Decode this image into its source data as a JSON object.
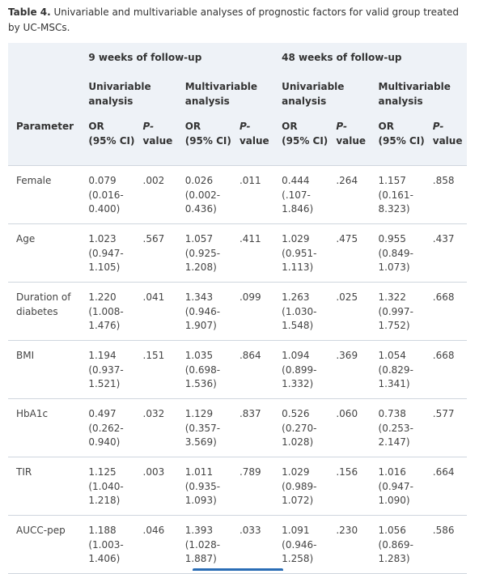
{
  "caption": {
    "label": "Table 4.",
    "text": "Univariable and multivariable analyses of prognostic factors for valid group treated by UC-MSCs."
  },
  "header": {
    "group_9": "9 weeks of follow-up",
    "group_48": "48 weeks of follow-up",
    "univariable_1": "Univariable",
    "analysis_1": "analysis",
    "multivariable_1": "Multivariable",
    "analysis_2": "analysis",
    "univariable_2": "Univariable",
    "analysis_3": "analysis",
    "multivariable_2": "Multivariable",
    "analysis_4": "analysis",
    "parameter": "Parameter",
    "or": "OR",
    "ci": "(95% CI)",
    "p": "P-",
    "value": "value"
  },
  "rows": [
    {
      "param": [
        "Female"
      ],
      "cells": [
        [
          "0.079",
          "(0.016-",
          "0.400)"
        ],
        [
          ".002"
        ],
        [
          "0.026",
          "(0.002-",
          "0.436)"
        ],
        [
          ".011"
        ],
        [
          "0.444",
          "(.107-",
          "1.846)"
        ],
        [
          ".264"
        ],
        [
          "1.157",
          "(0.161-",
          "8.323)"
        ],
        [
          ".858"
        ]
      ]
    },
    {
      "param": [
        "Age"
      ],
      "cells": [
        [
          "1.023",
          "(0.947-",
          "1.105)"
        ],
        [
          ".567"
        ],
        [
          "1.057",
          "(0.925-",
          "1.208)"
        ],
        [
          ".411"
        ],
        [
          "1.029",
          "(0.951-",
          "1.113)"
        ],
        [
          ".475"
        ],
        [
          "0.955",
          "(0.849-",
          "1.073)"
        ],
        [
          ".437"
        ]
      ]
    },
    {
      "param": [
        "Duration of",
        "diabetes"
      ],
      "cells": [
        [
          "1.220",
          "(1.008-",
          "1.476)"
        ],
        [
          ".041"
        ],
        [
          "1.343",
          "(0.946-",
          "1.907)"
        ],
        [
          ".099"
        ],
        [
          "1.263",
          "(1.030-",
          "1.548)"
        ],
        [
          ".025"
        ],
        [
          "1.322",
          "(0.997-",
          "1.752)"
        ],
        [
          ".668"
        ]
      ]
    },
    {
      "param": [
        "BMI"
      ],
      "cells": [
        [
          "1.194",
          "(0.937-",
          "1.521)"
        ],
        [
          ".151"
        ],
        [
          "1.035",
          "(0.698-",
          "1.536)"
        ],
        [
          ".864"
        ],
        [
          "1.094",
          "(0.899-",
          "1.332)"
        ],
        [
          ".369"
        ],
        [
          "1.054",
          "(0.829-",
          "1.341)"
        ],
        [
          ".668"
        ]
      ]
    },
    {
      "param": [
        "HbA1c"
      ],
      "cells": [
        [
          "0.497",
          "(0.262-",
          "0.940)"
        ],
        [
          ".032"
        ],
        [
          "1.129",
          "(0.357-",
          "3.569)"
        ],
        [
          ".837"
        ],
        [
          "0.526",
          "(0.270-",
          "1.028)"
        ],
        [
          ".060"
        ],
        [
          "0.738",
          "(0.253-",
          "2.147)"
        ],
        [
          ".577"
        ]
      ]
    },
    {
      "param": [
        "TIR"
      ],
      "cells": [
        [
          "1.125",
          "(1.040-",
          "1.218)"
        ],
        [
          ".003"
        ],
        [
          "1.011",
          "(0.935-",
          "1.093)"
        ],
        [
          ".789"
        ],
        [
          "1.029",
          "(0.989-",
          "1.072)"
        ],
        [
          ".156"
        ],
        [
          "1.016",
          "(0.947-",
          "1.090)"
        ],
        [
          ".664"
        ]
      ]
    },
    {
      "param": [
        "AUCC-pep"
      ],
      "cells": [
        [
          "1.188",
          "(1.003-",
          "1.406)"
        ],
        [
          ".046"
        ],
        [
          "1.393",
          "(1.028-",
          "1.887)"
        ],
        [
          ".033"
        ],
        [
          "1.091",
          "(0.946-",
          "1.258)"
        ],
        [
          ".230"
        ],
        [
          "1.056",
          "(0.869-",
          "1.283)"
        ],
        [
          ".586"
        ]
      ]
    }
  ]
}
